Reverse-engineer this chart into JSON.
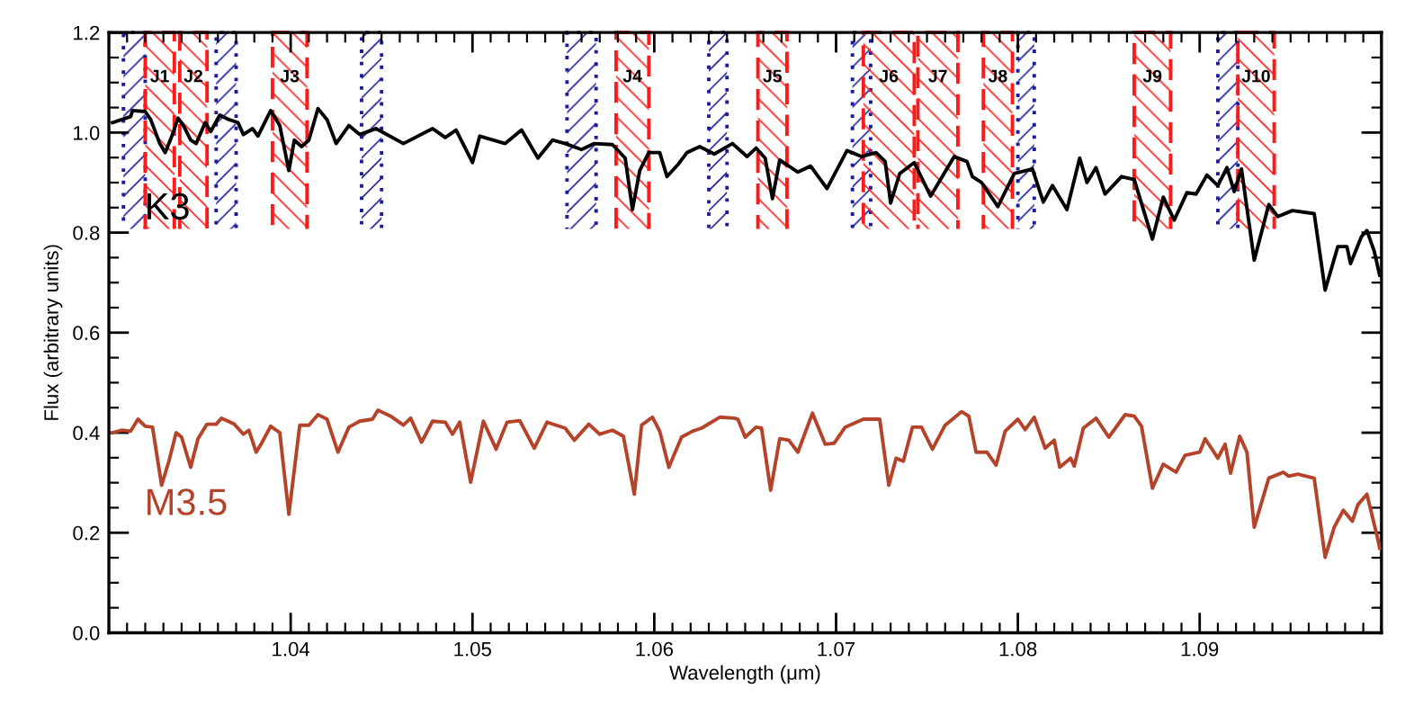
{
  "chart_data": {
    "type": "line",
    "xlabel": "Wavelength (μm)",
    "ylabel": "Flux (arbitrary units)",
    "xlim": [
      1.03,
      1.1
    ],
    "ylim": [
      0.0,
      1.2
    ],
    "xticks": [
      1.04,
      1.05,
      1.06,
      1.07,
      1.08,
      1.09
    ],
    "yticks": [
      {
        "value": 0.0,
        "label": "0.0"
      },
      0.2,
      0.4,
      0.6,
      0.8,
      {
        "value": 1.0,
        "label": "1.0"
      },
      1.2
    ],
    "grid": false,
    "legend": false,
    "line_style": "solid",
    "marker": "none",
    "series": [
      {
        "name": "K3",
        "color": "#000000",
        "x": [
          1.0302,
          1.0312,
          1.0313,
          1.032,
          1.0323,
          1.0328,
          1.0331,
          1.0335,
          1.0338,
          1.0341,
          1.0345,
          1.0348,
          1.0353,
          1.0356,
          1.0361,
          1.0366,
          1.0371,
          1.0374,
          1.0379,
          1.0382,
          1.0389,
          1.0394,
          1.0399,
          1.0402,
          1.0406,
          1.041,
          1.0415,
          1.042,
          1.0425,
          1.0432,
          1.0438,
          1.0447,
          1.0462,
          1.0478,
          1.0485,
          1.0491,
          1.05,
          1.0504,
          1.0518,
          1.0527,
          1.0536,
          1.0544,
          1.0551,
          1.056,
          1.0567,
          1.0577,
          1.0584,
          1.0588,
          1.0592,
          1.0597,
          1.0603,
          1.0607,
          1.0613,
          1.0618,
          1.0625,
          1.0633,
          1.0643,
          1.0651,
          1.0656,
          1.0661,
          1.0665,
          1.0669,
          1.0679,
          1.0686,
          1.0695,
          1.0706,
          1.0714,
          1.0722,
          1.0727,
          1.073,
          1.0735,
          1.0743,
          1.0752,
          1.0765,
          1.0772,
          1.0775,
          1.078,
          1.0789,
          1.0798,
          1.0808,
          1.0814,
          1.0819,
          1.0827,
          1.0834,
          1.0838,
          1.0843,
          1.0848,
          1.0857,
          1.0864,
          1.0874,
          1.088,
          1.0886,
          1.0893,
          1.0898,
          1.0904,
          1.091,
          1.0915,
          1.0919,
          1.0923,
          1.093,
          1.0938,
          1.0943,
          1.0951,
          1.0963,
          1.0969,
          1.0976,
          1.0981,
          1.0983,
          1.0989,
          1.0992,
          1.0996,
          1.0999
        ],
        "values": [
          1.02,
          1.032,
          1.044,
          1.042,
          1.026,
          0.978,
          0.96,
          0.996,
          1.029,
          1.014,
          0.985,
          0.978,
          1.02,
          1.002,
          1.035,
          1.026,
          1.02,
          0.996,
          1.008,
          0.993,
          1.044,
          1.014,
          0.924,
          0.985,
          0.972,
          0.985,
          1.048,
          1.026,
          0.978,
          1.014,
          0.996,
          1.008,
          0.978,
          1.008,
          0.99,
          1.005,
          0.94,
          0.993,
          0.978,
          1.005,
          0.949,
          0.985,
          0.978,
          0.966,
          0.978,
          0.976,
          0.949,
          0.846,
          0.924,
          0.96,
          0.96,
          0.912,
          0.936,
          0.96,
          0.972,
          0.957,
          0.978,
          0.952,
          0.969,
          0.949,
          0.868,
          0.945,
          0.921,
          0.933,
          0.888,
          0.964,
          0.952,
          0.96,
          0.942,
          0.859,
          0.918,
          0.94,
          0.873,
          0.952,
          0.942,
          0.912,
          0.9,
          0.852,
          0.918,
          0.927,
          0.861,
          0.894,
          0.846,
          0.949,
          0.9,
          0.93,
          0.877,
          0.912,
          0.906,
          0.787,
          0.871,
          0.825,
          0.88,
          0.877,
          0.915,
          0.894,
          0.93,
          0.882,
          0.927,
          0.745,
          0.856,
          0.832,
          0.844,
          0.838,
          0.685,
          0.772,
          0.772,
          0.738,
          0.792,
          0.804,
          0.763,
          0.715
        ]
      },
      {
        "name": "M3.5",
        "color": "#b5432a",
        "x": [
          1.0302,
          1.0307,
          1.0312,
          1.0316,
          1.032,
          1.0324,
          1.0329,
          1.0333,
          1.0337,
          1.034,
          1.0345,
          1.0349,
          1.0354,
          1.0359,
          1.0362,
          1.0369,
          1.0374,
          1.0377,
          1.0381,
          1.0384,
          1.0389,
          1.0394,
          1.0399,
          1.0405,
          1.041,
          1.0415,
          1.042,
          1.0426,
          1.0432,
          1.0438,
          1.0445,
          1.0448,
          1.0455,
          1.0462,
          1.0466,
          1.0472,
          1.0478,
          1.0485,
          1.0489,
          1.0493,
          1.0499,
          1.0506,
          1.0513,
          1.0519,
          1.0526,
          1.0534,
          1.0541,
          1.0551,
          1.0556,
          1.0564,
          1.057,
          1.0577,
          1.0583,
          1.0589,
          1.0593,
          1.0599,
          1.0603,
          1.0608,
          1.0615,
          1.0621,
          1.0626,
          1.0636,
          1.0644,
          1.0646,
          1.065,
          1.0656,
          1.0659,
          1.0664,
          1.0669,
          1.0674,
          1.0679,
          1.0687,
          1.0694,
          1.0699,
          1.0705,
          1.0715,
          1.0724,
          1.0729,
          1.0733,
          1.0737,
          1.0742,
          1.0747,
          1.0753,
          1.076,
          1.0769,
          1.0773,
          1.0777,
          1.0783,
          1.0788,
          1.0793,
          1.08,
          1.0804,
          1.0809,
          1.0815,
          1.082,
          1.0823,
          1.0829,
          1.0831,
          1.0836,
          1.0843,
          1.085,
          1.0859,
          1.0864,
          1.0868,
          1.0874,
          1.088,
          1.0887,
          1.0892,
          1.09,
          1.0903,
          1.091,
          1.0914,
          1.0917,
          1.0922,
          1.0926,
          1.093,
          1.0938,
          1.0946,
          1.0949,
          1.0954,
          1.0963,
          1.0969,
          1.0974,
          1.0979,
          1.0984,
          1.0987,
          1.0992,
          1.0998,
          1.0999
        ],
        "values": [
          0.4,
          0.405,
          0.403,
          0.427,
          0.413,
          0.411,
          0.295,
          0.343,
          0.4,
          0.391,
          0.331,
          0.388,
          0.417,
          0.417,
          0.429,
          0.417,
          0.397,
          0.405,
          0.361,
          0.379,
          0.413,
          0.4,
          0.237,
          0.415,
          0.415,
          0.436,
          0.427,
          0.361,
          0.411,
          0.423,
          0.427,
          0.445,
          0.433,
          0.415,
          0.429,
          0.381,
          0.423,
          0.421,
          0.397,
          0.421,
          0.301,
          0.423,
          0.367,
          0.421,
          0.424,
          0.369,
          0.421,
          0.409,
          0.385,
          0.417,
          0.397,
          0.405,
          0.393,
          0.277,
          0.415,
          0.431,
          0.403,
          0.331,
          0.391,
          0.403,
          0.409,
          0.431,
          0.429,
          0.427,
          0.391,
          0.411,
          0.409,
          0.285,
          0.388,
          0.385,
          0.361,
          0.439,
          0.377,
          0.379,
          0.411,
          0.427,
          0.427,
          0.295,
          0.349,
          0.343,
          0.411,
          0.411,
          0.367,
          0.415,
          0.442,
          0.433,
          0.361,
          0.361,
          0.335,
          0.403,
          0.427,
          0.406,
          0.431,
          0.369,
          0.385,
          0.331,
          0.349,
          0.333,
          0.409,
          0.429,
          0.391,
          0.436,
          0.433,
          0.413,
          0.289,
          0.337,
          0.321,
          0.355,
          0.361,
          0.388,
          0.349,
          0.377,
          0.319,
          0.393,
          0.361,
          0.211,
          0.309,
          0.321,
          0.313,
          0.317,
          0.309,
          0.151,
          0.211,
          0.245,
          0.223,
          0.256,
          0.277,
          0.187,
          0.169
        ]
      }
    ],
    "bands": [
      {
        "axis": "x",
        "from": 1.0308,
        "to": 1.032,
        "label": null,
        "color": "#1c1c9c"
      },
      {
        "axis": "x",
        "from": 1.032,
        "to": 1.0336,
        "label": "J1",
        "color": "#ff1a1a"
      },
      {
        "axis": "x",
        "from": 1.0339,
        "to": 1.0354,
        "label": "J2",
        "color": "#ff1a1a"
      },
      {
        "axis": "x",
        "from": 1.0359,
        "to": 1.037,
        "label": null,
        "color": "#1c1c9c"
      },
      {
        "axis": "x",
        "from": 1.039,
        "to": 1.0409,
        "label": "J3",
        "color": "#ff1a1a"
      },
      {
        "axis": "x",
        "from": 1.0439,
        "to": 1.045,
        "label": null,
        "color": "#1c1c9c"
      },
      {
        "axis": "x",
        "from": 1.0552,
        "to": 1.0568,
        "label": null,
        "color": "#1c1c9c"
      },
      {
        "axis": "x",
        "from": 1.0579,
        "to": 1.0597,
        "label": "J4",
        "color": "#ff1a1a"
      },
      {
        "axis": "x",
        "from": 1.063,
        "to": 1.064,
        "label": null,
        "color": "#1c1c9c"
      },
      {
        "axis": "x",
        "from": 1.0657,
        "to": 1.0673,
        "label": "J5",
        "color": "#ff1a1a"
      },
      {
        "axis": "x",
        "from": 1.0709,
        "to": 1.0719,
        "label": null,
        "color": "#1c1c9c"
      },
      {
        "axis": "x",
        "from": 1.0715,
        "to": 1.0743,
        "label": "J6",
        "color": "#ff1a1a"
      },
      {
        "axis": "x",
        "from": 1.0745,
        "to": 1.0767,
        "label": "J7",
        "color": "#ff1a1a"
      },
      {
        "axis": "x",
        "from": 1.0781,
        "to": 1.0797,
        "label": "J8",
        "color": "#ff1a1a"
      },
      {
        "axis": "x",
        "from": 1.08,
        "to": 1.0809,
        "label": null,
        "color": "#1c1c9c"
      },
      {
        "axis": "x",
        "from": 1.0864,
        "to": 1.0884,
        "label": "J9",
        "color": "#ff1a1a"
      },
      {
        "axis": "x",
        "from": 1.091,
        "to": 1.0921,
        "label": null,
        "color": "#1c1c9c"
      },
      {
        "axis": "x",
        "from": 1.0921,
        "to": 1.0941,
        "label": "J10",
        "color": "#ff1a1a"
      }
    ]
  }
}
